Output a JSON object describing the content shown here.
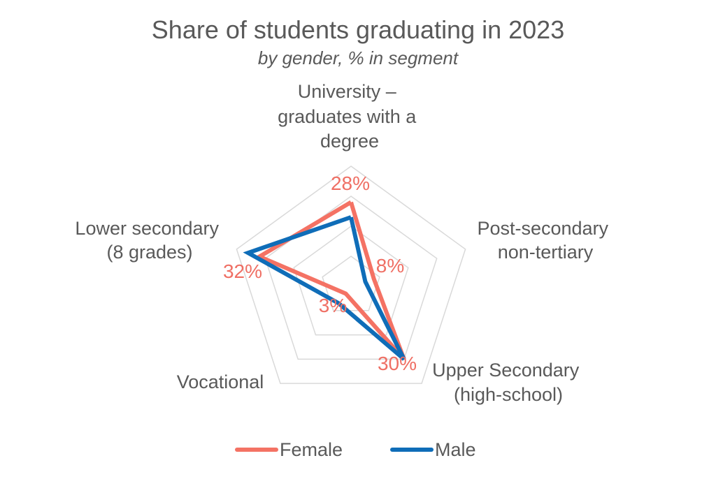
{
  "colors": {
    "female": "#F47264",
    "male": "#0F6DB8",
    "grid": "#D9D9D9"
  },
  "chart_data": {
    "type": "radar",
    "title": "Share of students graduating in 2023",
    "subtitle": "by gender, % in segment",
    "categories": [
      "University – graduates with a degree",
      "Post-secondary non-tertiary",
      "Upper Secondary (high-school)",
      "Vocational",
      "Lower secondary (8 grades)"
    ],
    "series": [
      {
        "name": "Female",
        "values": [
          28,
          8,
          30,
          3,
          32
        ],
        "labels": [
          "28%",
          "8%",
          "30%",
          "3%",
          "32%"
        ]
      },
      {
        "name": "Male",
        "values": [
          23,
          5,
          30,
          7,
          36
        ]
      }
    ],
    "rlim": [
      0,
      40
    ],
    "grid": true,
    "legend_position": "bottom"
  }
}
